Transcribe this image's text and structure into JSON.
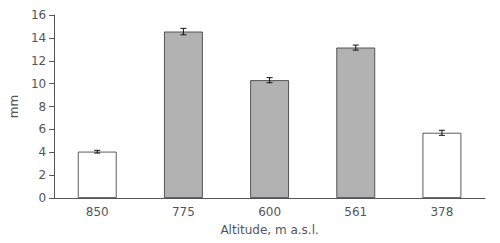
{
  "chart_data": {
    "type": "bar",
    "categories": [
      "850",
      "775",
      "600",
      "561",
      "378"
    ],
    "values": [
      4.05,
      14.55,
      10.3,
      13.15,
      5.7
    ],
    "errors": [
      0.12,
      0.28,
      0.22,
      0.22,
      0.22
    ],
    "colors": [
      "white",
      "#b2b2b2",
      "#b2b2b2",
      "#b2b2b2",
      "white"
    ],
    "xlabel": "Altitude, m a.s.l.",
    "ylabel": "mm",
    "ylim": [
      0,
      16
    ],
    "yticks": [
      0,
      2,
      4,
      6,
      8,
      10,
      12,
      14,
      16
    ],
    "grid": false
  }
}
